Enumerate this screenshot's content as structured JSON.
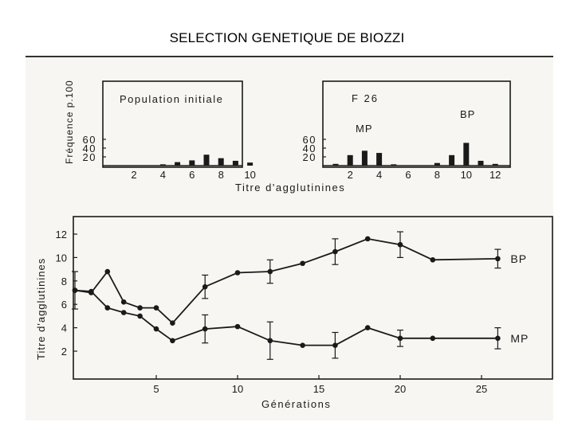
{
  "slide_title": "SELECTION GENETIQUE DE BIOZZI",
  "colors": {
    "ink": "#1a1a1a",
    "paper": "#f7f6f2"
  },
  "chart_data": [
    {
      "type": "bar",
      "title": "Population initiale",
      "ylabel": "Fréquence p.100",
      "ylim": [
        0,
        70
      ],
      "yticks": [
        "20",
        "40",
        "60"
      ],
      "xticks": [
        "2",
        "4",
        "6",
        "8",
        "10"
      ],
      "x": [
        4,
        5,
        6,
        7,
        8,
        9,
        10
      ],
      "values": [
        3,
        8,
        12,
        25,
        17,
        11,
        7
      ]
    },
    {
      "type": "bar",
      "title": "F 26",
      "xlabel": "Titre d'agglutinines",
      "ylim": [
        0,
        70
      ],
      "yticks": [
        "20",
        "40",
        "60"
      ],
      "xticks": [
        "2",
        "4",
        "6",
        "8",
        "10",
        "12"
      ],
      "annotations": [
        "MP",
        "BP"
      ],
      "x": [
        1,
        2,
        3,
        4,
        5,
        8,
        9,
        10,
        11,
        12
      ],
      "values": [
        4,
        24,
        34,
        29,
        3,
        6,
        24,
        52,
        11,
        4
      ]
    },
    {
      "type": "line",
      "xlabel": "Générations",
      "ylabel": "Titre d'agglutinines",
      "xlim": [
        0,
        28
      ],
      "ylim": [
        0,
        13
      ],
      "xticks": [
        "5",
        "10",
        "15",
        "20",
        "25"
      ],
      "yticks": [
        "2",
        "4",
        "6",
        "8",
        "10",
        "12"
      ],
      "series": [
        {
          "name": "BP",
          "x": [
            0,
            1,
            2,
            3,
            4,
            5,
            6,
            8,
            10,
            12,
            14,
            16,
            18,
            20,
            22,
            26
          ],
          "y": [
            7.2,
            7.0,
            8.8,
            6.2,
            5.7,
            5.7,
            4.4,
            7.5,
            8.7,
            8.8,
            9.5,
            10.5,
            11.6,
            11.1,
            9.8,
            9.9
          ],
          "err": [
            0,
            0,
            0,
            0,
            0,
            0,
            0,
            1.0,
            0,
            1.0,
            0,
            1.1,
            0,
            1.1,
            0,
            0.8
          ]
        },
        {
          "name": "MP",
          "x": [
            0,
            1,
            2,
            3,
            4,
            5,
            6,
            8,
            10,
            12,
            14,
            16,
            18,
            20,
            22,
            26
          ],
          "y": [
            7.2,
            7.1,
            5.7,
            5.3,
            5.0,
            3.9,
            2.9,
            3.9,
            4.1,
            2.9,
            2.5,
            2.5,
            4.0,
            3.1,
            3.1,
            3.1
          ],
          "err": [
            1.6,
            0,
            0,
            0,
            0,
            0,
            0,
            1.2,
            0,
            1.6,
            0,
            1.1,
            0,
            0.7,
            0,
            0.9
          ]
        }
      ]
    }
  ]
}
